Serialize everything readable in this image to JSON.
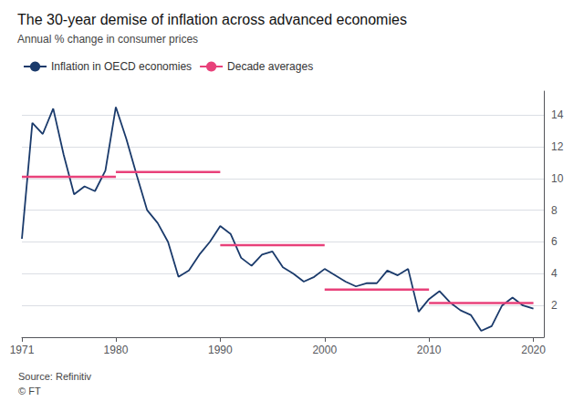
{
  "chart_data": {
    "type": "line",
    "title": "The 30-year demise of inflation across advanced economies",
    "subtitle": "Annual % change in consumer prices",
    "annotations": [
      "Source: Refinitiv",
      "© FT"
    ],
    "x": [
      1971,
      1972,
      1973,
      1974,
      1975,
      1976,
      1977,
      1978,
      1979,
      1980,
      1981,
      1982,
      1983,
      1984,
      1985,
      1986,
      1987,
      1988,
      1989,
      1990,
      1991,
      1992,
      1993,
      1994,
      1995,
      1996,
      1997,
      1998,
      1999,
      2000,
      2001,
      2002,
      2003,
      2004,
      2005,
      2006,
      2007,
      2008,
      2009,
      2010,
      2011,
      2012,
      2013,
      2014,
      2015,
      2016,
      2017,
      2018,
      2019,
      2020
    ],
    "series": [
      {
        "name": "Inflation in OECD economies",
        "color": "#1a3a6b",
        "values": [
          6.2,
          13.5,
          12.8,
          14.4,
          11.5,
          9.0,
          9.5,
          9.2,
          10.5,
          14.5,
          12.5,
          10.2,
          8.0,
          7.2,
          6.0,
          3.8,
          4.2,
          5.2,
          6.0,
          7.0,
          6.5,
          5.0,
          4.5,
          5.2,
          5.4,
          4.4,
          4.0,
          3.5,
          3.8,
          4.3,
          3.9,
          3.5,
          3.2,
          3.4,
          3.4,
          4.2,
          3.9,
          4.3,
          1.6,
          2.4,
          2.9,
          2.2,
          1.7,
          1.4,
          0.4,
          0.7,
          2.0,
          2.5,
          2.0,
          1.8
        ]
      },
      {
        "name": "Decade averages",
        "color": "#e8417a",
        "segments": [
          {
            "x_start": 1971,
            "x_end": 1980,
            "y": 10.1
          },
          {
            "x_start": 1980,
            "x_end": 1990,
            "y": 10.4
          },
          {
            "x_start": 1990,
            "x_end": 2000,
            "y": 5.8
          },
          {
            "x_start": 2000,
            "x_end": 2010,
            "y": 3.0
          },
          {
            "x_start": 2010,
            "x_end": 2020,
            "y": 2.15
          }
        ]
      }
    ],
    "xlim": [
      1971,
      2021
    ],
    "xticks": [
      1971,
      1980,
      1990,
      2000,
      2010,
      2020
    ],
    "ylim": [
      0,
      15.5
    ],
    "yticks": [
      2,
      4,
      6,
      8,
      10,
      12,
      14
    ],
    "grid": "y",
    "legend": "upper left"
  }
}
